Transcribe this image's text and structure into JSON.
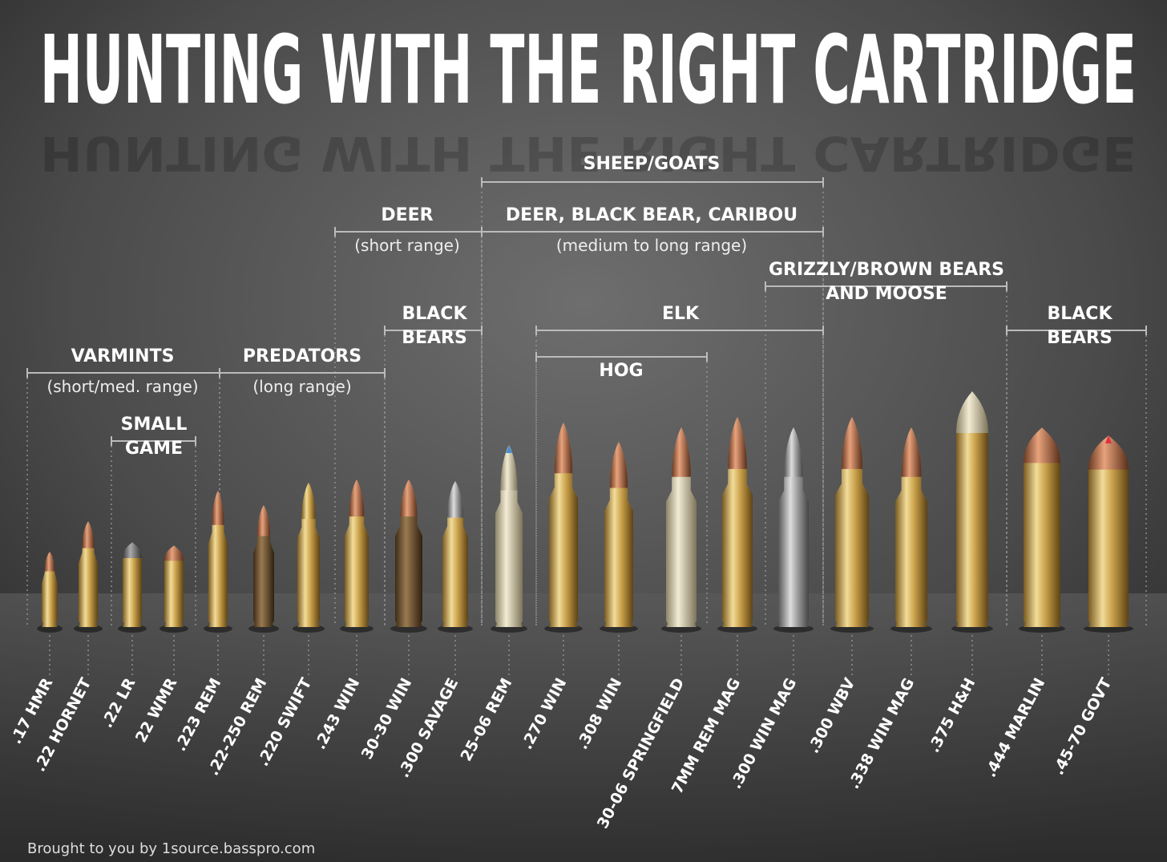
{
  "title": "HUNTING WITH THE RIGHT CARTRIDGE",
  "groups": [
    {
      "lines": [
        "SHEEP/GOATS"
      ]
    },
    {
      "lines": [
        "DEER"
      ],
      "note": "(short range)"
    },
    {
      "lines": [
        "DEER, BLACK BEAR, CARIBOU"
      ],
      "note": "(medium to long range)"
    },
    {
      "lines": [
        "GRIZZLY/BROWN BEARS",
        "AND MOOSE"
      ]
    },
    {
      "lines": [
        "BLACK",
        "BEARS"
      ]
    },
    {
      "lines": [
        "ELK"
      ]
    },
    {
      "lines": [
        "BLACK",
        "BEARS"
      ]
    },
    {
      "lines": [
        "HOG"
      ]
    },
    {
      "lines": [
        "VARMINTS"
      ],
      "note": "(short/med. range)"
    },
    {
      "lines": [
        "PREDATORS"
      ],
      "note": "(long range)"
    },
    {
      "lines": [
        "SMALL",
        "GAME"
      ]
    }
  ],
  "cartridges": [
    ".17 HMR",
    ".22 HORNET",
    ".22 LR",
    "22 WMR",
    ".223 REM",
    ".22-250 REM",
    ".220 SWIFT",
    ".243 WIN",
    "30-30 WIN",
    ".300 SAVAGE",
    "25-06 REM",
    ".270 WIN",
    ".308 WIN",
    "30-06 SPRINGFIELD",
    "7MM REM MAG",
    ".300 WIN MAG",
    ".300 WBV",
    ".338 WIN MAG",
    ".375 H&H",
    ".444 MARLIN",
    ".45-70 GOVT"
  ],
  "footer": "Brought to you by 1source.basspro.com"
}
